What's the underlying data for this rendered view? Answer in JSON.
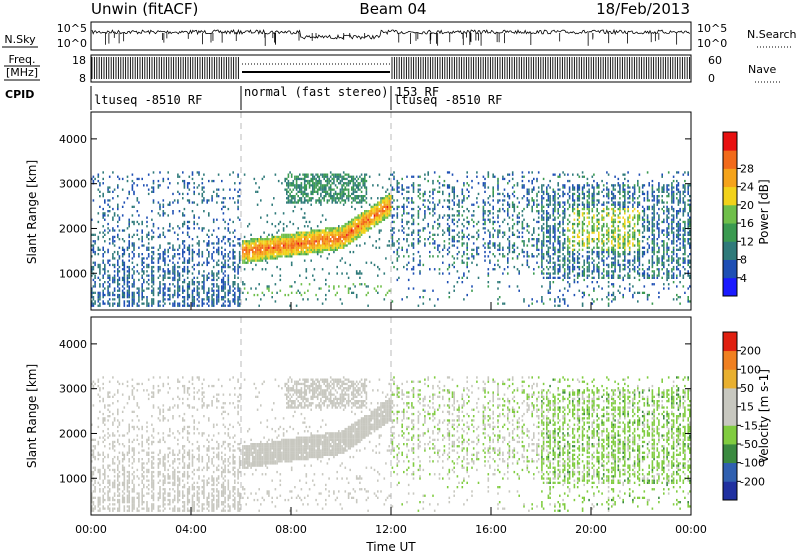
{
  "header": {
    "station": "Unwin (fitACF)",
    "beam": "Beam 04",
    "date": "18/Feb/2013"
  },
  "noise_panel": {
    "left_label": "N.Sky",
    "right_label": "N.Search",
    "ticks": [
      "10^5",
      "10^0"
    ]
  },
  "freq_panel": {
    "left_label_top": "Freq.",
    "left_label_bottom": "[MHz]",
    "left_ticks": [
      "18",
      "8"
    ],
    "right_label": "Nave",
    "right_ticks": [
      "60",
      "0"
    ]
  },
  "cpid": {
    "label": "CPID",
    "segments": [
      {
        "text": "ltuseq -8510 RF"
      },
      {
        "text": "normal (fast stereo) 153 RF"
      },
      {
        "text": "ltuseq -8510 RF"
      }
    ]
  },
  "colors": {
    "power_scale": [
      "#1a1aff",
      "#1e4fb4",
      "#2f7a7a",
      "#3a9a50",
      "#6fbf4a",
      "#f2d21a",
      "#f5a31a",
      "#f26a1a",
      "#e81010"
    ],
    "velocity_scale": [
      "#2030a0",
      "#3060b0",
      "#3a8a40",
      "#80cc40",
      "#c8c8c0",
      "#c8c8c0",
      "#e8b030",
      "#f08020",
      "#e02010"
    ]
  },
  "chart_data": [
    {
      "type": "heatmap",
      "name": "power",
      "ylabel": "Slant Range [km]",
      "xlabel": "Time UT",
      "xlim": [
        0,
        24
      ],
      "ylim": [
        180,
        4600
      ],
      "x_tick_labels": [
        "00:00",
        "04:00",
        "08:00",
        "12:00",
        "16:00",
        "20:00",
        "00:00"
      ],
      "y_ticks": [
        1000,
        2000,
        3000,
        4000
      ],
      "colorbar": {
        "label": "Power [dB]",
        "ticks": [
          "4",
          "8",
          "12",
          "16",
          "20",
          "24",
          "28"
        ],
        "range": [
          0,
          32
        ]
      }
    },
    {
      "type": "heatmap",
      "name": "velocity",
      "ylabel": "Slant Range [km]",
      "xlabel": "Time UT",
      "xlim": [
        0,
        24
      ],
      "ylim": [
        180,
        4600
      ],
      "x_tick_labels": [
        "00:00",
        "04:00",
        "08:00",
        "12:00",
        "16:00",
        "20:00",
        "00:00"
      ],
      "y_ticks": [
        1000,
        2000,
        3000,
        4000
      ],
      "colorbar": {
        "label": "Velocity [m s-1]",
        "ticks": [
          "200",
          "100",
          "50",
          "15",
          "-15",
          "-50",
          "-100",
          "-200"
        ]
      }
    }
  ],
  "time_axis_label": "Time UT"
}
